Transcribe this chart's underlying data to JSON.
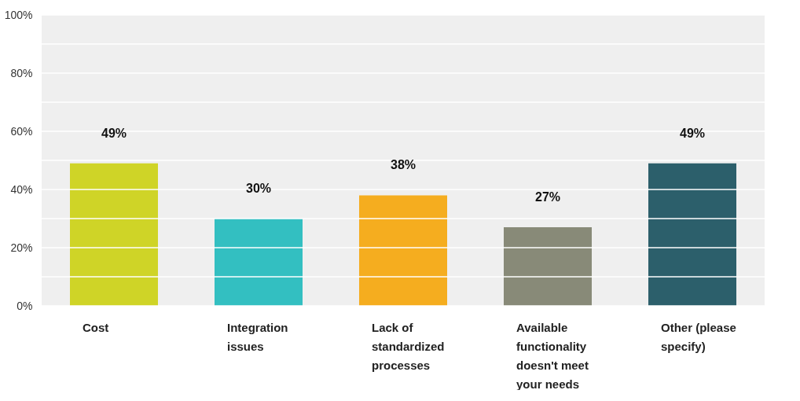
{
  "chart_data": {
    "type": "bar",
    "categories": [
      "Cost",
      "Integration issues",
      "Lack of standardized processes",
      "Available functionality doesn't meet your needs",
      "Other (please specify)"
    ],
    "values": [
      49,
      30,
      38,
      27,
      49
    ],
    "colors": [
      "#cfd427",
      "#33bfc1",
      "#f5ad1f",
      "#888a78",
      "#2c5f6b"
    ],
    "value_labels": [
      "49%",
      "30%",
      "38%",
      "27%",
      "49%"
    ],
    "ylim": [
      0,
      100
    ],
    "yticks": [
      {
        "value": 0,
        "label": "0%"
      },
      {
        "value": 10,
        "label": null
      },
      {
        "value": 20,
        "label": "20%"
      },
      {
        "value": 30,
        "label": null
      },
      {
        "value": 40,
        "label": "40%"
      },
      {
        "value": 50,
        "label": null
      },
      {
        "value": 60,
        "label": "60%"
      },
      {
        "value": 70,
        "label": null
      },
      {
        "value": 80,
        "label": "80%"
      },
      {
        "value": 90,
        "label": null
      },
      {
        "value": 100,
        "label": "100%"
      }
    ],
    "grid": true
  }
}
